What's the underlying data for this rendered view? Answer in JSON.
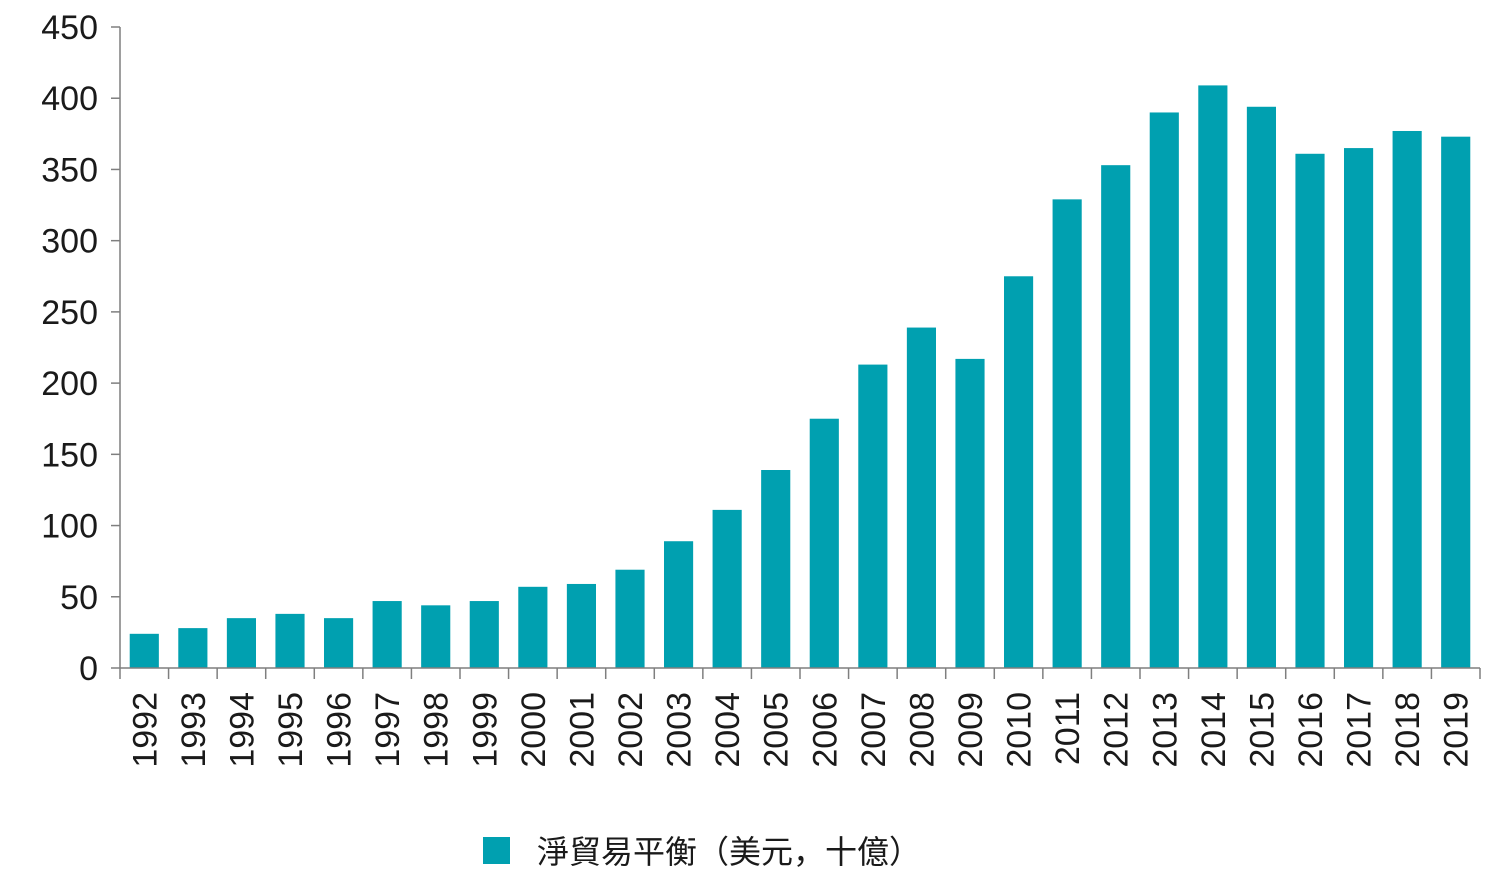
{
  "chart_data": {
    "type": "bar",
    "categories": [
      "1992",
      "1993",
      "1994",
      "1995",
      "1996",
      "1997",
      "1998",
      "1999",
      "2000",
      "2001",
      "2002",
      "2003",
      "2004",
      "2005",
      "2006",
      "2007",
      "2008",
      "2009",
      "2010",
      "2011",
      "2012",
      "2013",
      "2014",
      "2015",
      "2016",
      "2017",
      "2018",
      "2019"
    ],
    "series": [
      {
        "name": "淨貿易平衡（美元，十億）",
        "values": [
          24,
          28,
          35,
          38,
          35,
          47,
          44,
          47,
          57,
          59,
          69,
          89,
          111,
          139,
          175,
          213,
          239,
          217,
          275,
          329,
          353,
          390,
          409,
          394,
          361,
          365,
          377,
          373
        ],
        "color": "#00a0b0"
      }
    ],
    "ylim": [
      0,
      450
    ],
    "yticks": [
      0,
      50,
      100,
      150,
      200,
      250,
      300,
      350,
      400,
      450
    ],
    "grid": false,
    "legend_position": "bottom",
    "title": "",
    "xlabel": "",
    "ylabel": ""
  }
}
